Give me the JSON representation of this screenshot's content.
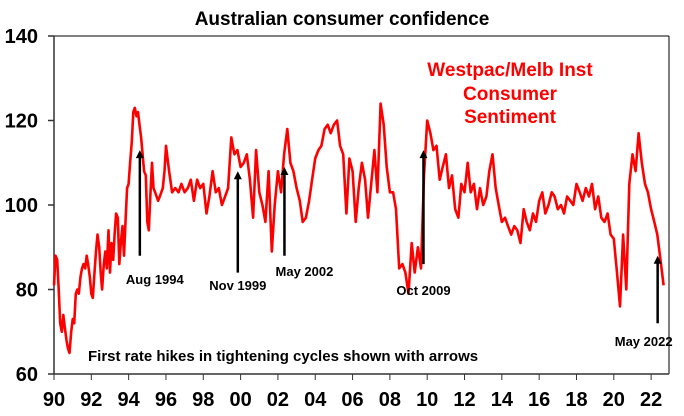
{
  "chart_data": {
    "type": "line",
    "title": "Australian consumer confidence",
    "xlabel": "",
    "ylabel": "",
    "xlim": [
      1990,
      2022.9
    ],
    "ylim": [
      60,
      140
    ],
    "yticks": [
      60,
      80,
      100,
      120,
      140
    ],
    "ytick_labels": [
      "60",
      "80",
      "100",
      "120",
      "140"
    ],
    "xticks": [
      1990,
      1992,
      1994,
      1996,
      1998,
      2000,
      2002,
      2004,
      2006,
      2008,
      2010,
      2012,
      2014,
      2016,
      2018,
      2020,
      2022
    ],
    "xtick_labels": [
      "90",
      "92",
      "94",
      "96",
      "98",
      "00",
      "02",
      "04",
      "06",
      "08",
      "10",
      "12",
      "14",
      "16",
      "18",
      "20",
      "22"
    ],
    "grid": false,
    "legend": {
      "position": "top-right",
      "lines": [
        "Westpac/Melb Inst",
        "Consumer",
        "Sentiment"
      ]
    },
    "line_color": "#ff0000",
    "series": [
      {
        "name": "Westpac/Melb Inst Consumer Sentiment",
        "x": [
          1990.0,
          1990.08,
          1990.17,
          1990.25,
          1990.33,
          1990.42,
          1990.5,
          1990.58,
          1990.67,
          1990.75,
          1990.83,
          1990.92,
          1991.0,
          1991.08,
          1991.17,
          1991.25,
          1991.33,
          1991.42,
          1991.5,
          1991.58,
          1991.67,
          1991.75,
          1991.83,
          1991.92,
          1992.0,
          1992.08,
          1992.17,
          1992.25,
          1992.33,
          1992.42,
          1992.5,
          1992.58,
          1992.67,
          1992.75,
          1992.83,
          1992.92,
          1993.0,
          1993.08,
          1993.17,
          1993.25,
          1993.33,
          1993.42,
          1993.5,
          1993.58,
          1993.67,
          1993.75,
          1993.83,
          1993.92,
          1994.0,
          1994.08,
          1994.17,
          1994.25,
          1994.33,
          1994.42,
          1994.5,
          1994.58,
          1994.67,
          1994.75,
          1994.83,
          1994.92,
          1995.0,
          1995.08,
          1995.17,
          1995.25,
          1995.33,
          1995.42,
          1995.5,
          1995.58,
          1995.67,
          1995.75,
          1995.83,
          1995.92,
          1996.0,
          1996.17,
          1996.33,
          1996.5,
          1996.67,
          1996.83,
          1997.0,
          1997.17,
          1997.33,
          1997.5,
          1997.67,
          1997.83,
          1998.0,
          1998.17,
          1998.33,
          1998.5,
          1998.67,
          1998.83,
          1999.0,
          1999.17,
          1999.33,
          1999.5,
          1999.67,
          1999.83,
          2000.0,
          2000.17,
          2000.33,
          2000.5,
          2000.67,
          2000.83,
          2001.0,
          2001.17,
          2001.33,
          2001.5,
          2001.67,
          2001.83,
          2002.0,
          2002.17,
          2002.33,
          2002.5,
          2002.67,
          2002.83,
          2003.0,
          2003.17,
          2003.33,
          2003.5,
          2003.67,
          2003.83,
          2004.0,
          2004.17,
          2004.33,
          2004.5,
          2004.67,
          2004.83,
          2005.0,
          2005.17,
          2005.33,
          2005.5,
          2005.67,
          2005.83,
          2006.0,
          2006.17,
          2006.33,
          2006.5,
          2006.67,
          2006.83,
          2007.0,
          2007.17,
          2007.33,
          2007.5,
          2007.67,
          2007.83,
          2008.0,
          2008.17,
          2008.33,
          2008.5,
          2008.67,
          2008.83,
          2009.0,
          2009.17,
          2009.33,
          2009.5,
          2009.67,
          2009.83,
          2010.0,
          2010.17,
          2010.33,
          2010.5,
          2010.67,
          2010.83,
          2011.0,
          2011.17,
          2011.33,
          2011.5,
          2011.67,
          2011.83,
          2012.0,
          2012.17,
          2012.33,
          2012.5,
          2012.67,
          2012.83,
          2013.0,
          2013.17,
          2013.33,
          2013.5,
          2013.67,
          2013.83,
          2014.0,
          2014.17,
          2014.33,
          2014.5,
          2014.67,
          2014.83,
          2015.0,
          2015.17,
          2015.33,
          2015.5,
          2015.67,
          2015.83,
          2016.0,
          2016.17,
          2016.33,
          2016.5,
          2016.67,
          2016.83,
          2017.0,
          2017.17,
          2017.33,
          2017.5,
          2017.67,
          2017.83,
          2018.0,
          2018.17,
          2018.33,
          2018.5,
          2018.67,
          2018.83,
          2019.0,
          2019.17,
          2019.33,
          2019.5,
          2019.67,
          2019.83,
          2020.0,
          2020.17,
          2020.33,
          2020.5,
          2020.67,
          2020.83,
          2021.0,
          2021.17,
          2021.33,
          2021.5,
          2021.67,
          2021.83,
          2022.0,
          2022.17,
          2022.33,
          2022.5,
          2022.67
        ],
        "values": [
          81,
          88,
          87,
          80,
          72,
          70,
          74,
          71,
          68,
          66,
          65,
          70,
          73,
          72,
          79,
          80,
          79,
          83,
          85,
          86,
          85,
          88,
          86,
          83,
          79,
          78,
          84,
          89,
          93,
          90,
          84,
          80,
          86,
          89,
          85,
          94,
          84,
          91,
          87,
          93,
          98,
          97,
          86,
          91,
          95,
          88,
          96,
          104,
          105,
          110,
          115,
          122,
          123,
          121,
          122,
          119,
          116,
          112,
          108,
          107,
          96,
          94,
          103,
          110,
          104,
          103,
          102,
          101,
          102,
          103,
          104,
          108,
          114,
          108,
          103,
          104,
          103,
          105,
          103,
          104,
          106,
          101,
          106,
          104,
          105,
          98,
          102,
          108,
          103,
          104,
          100,
          102,
          104,
          116,
          112,
          113,
          109,
          110,
          112,
          106,
          97,
          113,
          103,
          100,
          96,
          108,
          89,
          100,
          108,
          103,
          112,
          118,
          110,
          108,
          104,
          101,
          96,
          97,
          101,
          106,
          111,
          113,
          114,
          118,
          119,
          117,
          119,
          120,
          114,
          112,
          98,
          111,
          108,
          96,
          104,
          110,
          106,
          97,
          105,
          113,
          103,
          124,
          119,
          109,
          103,
          103,
          99,
          85,
          86,
          84,
          79,
          91,
          84,
          90,
          85,
          107,
          120,
          117,
          113,
          114,
          106,
          109,
          112,
          104,
          107,
          99,
          97,
          105,
          103,
          110,
          103,
          105,
          99,
          104,
          100,
          102,
          108,
          112,
          104,
          100,
          96,
          97,
          95,
          93,
          95,
          94,
          91,
          99,
          96,
          94,
          98,
          96,
          101,
          103,
          98,
          100,
          103,
          102,
          99,
          100,
          98,
          102,
          101,
          100,
          105,
          103,
          101,
          104,
          102,
          105,
          99,
          102,
          97,
          96,
          98,
          93,
          92,
          84,
          76,
          93,
          80,
          105,
          112,
          108,
          117,
          110,
          105,
          103,
          99,
          96,
          93,
          87,
          81
        ]
      }
    ],
    "annotations": [
      {
        "label": "Aug 1994",
        "x": 1994.6,
        "arrow_top": 113,
        "arrow_bottom": 88
      },
      {
        "label": "Nov 1999",
        "x": 1999.85,
        "arrow_top": 108,
        "arrow_bottom": 84
      },
      {
        "label": "May 2002",
        "x": 2002.35,
        "arrow_top": 109,
        "arrow_bottom": 88
      },
      {
        "label": "Oct 2009",
        "x": 2009.8,
        "arrow_top": 113,
        "arrow_bottom": 86
      },
      {
        "label": "May 2022",
        "x": 2022.35,
        "arrow_top": 88,
        "arrow_bottom": 72
      }
    ],
    "note": "First rate hikes in tightening cycles shown with arrows"
  }
}
